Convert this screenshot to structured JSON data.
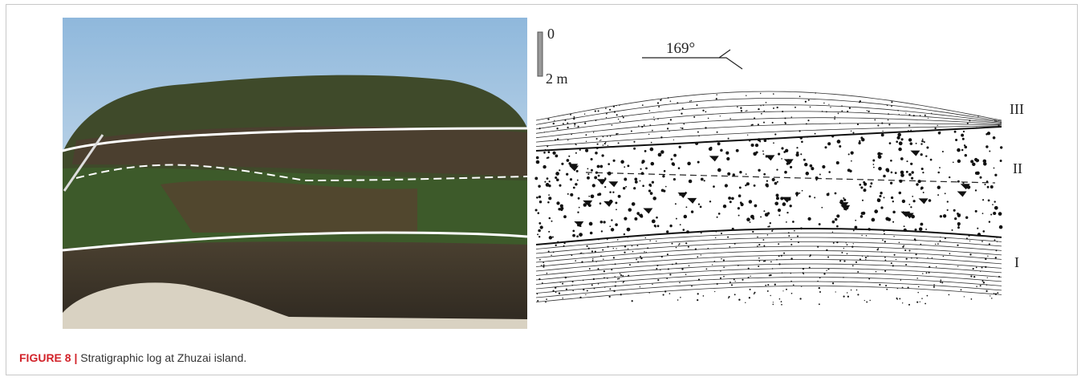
{
  "figure": {
    "scale": {
      "top": "0",
      "bottom": "2 m"
    },
    "strike": "169°",
    "units": [
      "III",
      "II",
      "I"
    ],
    "caption": {
      "label": "FIGURE 8 |",
      "text": "Stratigraphic log at Zhuzai island."
    }
  }
}
